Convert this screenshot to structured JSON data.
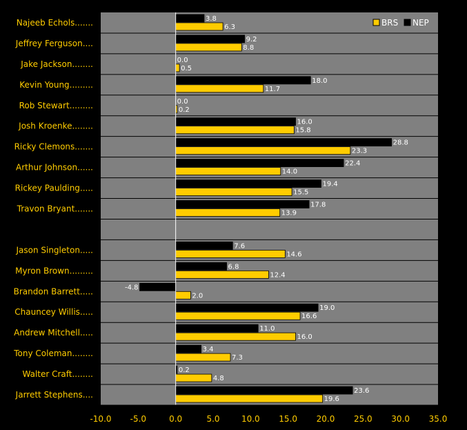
{
  "chart_data": {
    "type": "bar",
    "orientation": "horizontal",
    "categories": [
      "Najeeb Echols.......",
      "Jeffrey Ferguson....",
      "Jake Jackson........",
      "Kevin Young.........",
      "Rob Stewart.........",
      "Josh Kroenke........",
      "Ricky Clemons.......",
      "Arthur Johnson......",
      "Rickey Paulding.....",
      "Travon Bryant.......",
      "",
      "Jason Singleton.....",
      "Myron Brown.........",
      "Brandon Barrett.....",
      "Chauncey Willis.....",
      "Andrew Mitchell.....",
      "Tony Coleman........",
      "Walter Craft........",
      "Jarrett Stephens...."
    ],
    "series": [
      {
        "name": "NEP",
        "color": "#000000",
        "values": [
          3.8,
          9.2,
          0.0,
          18.0,
          0.0,
          16.0,
          28.8,
          22.4,
          19.4,
          17.8,
          null,
          7.6,
          6.8,
          -4.8,
          19.0,
          11.0,
          3.4,
          0.2,
          23.6
        ],
        "labels": [
          "3.8",
          "9.2",
          "0.0",
          "18.0",
          "0.0",
          "16.0",
          "28.8",
          "22.4",
          "19.4",
          "17.8",
          "",
          "7.6",
          "6.8",
          "-4.8",
          "19.0",
          "11.0",
          "3.4",
          "0.2",
          "23.6"
        ]
      },
      {
        "name": "BRS",
        "color": "#ffcc00",
        "values": [
          6.3,
          8.8,
          0.5,
          11.7,
          0.2,
          15.8,
          23.3,
          14.0,
          15.5,
          13.9,
          null,
          14.6,
          12.4,
          2.0,
          16.6,
          16.0,
          7.3,
          4.8,
          19.6
        ],
        "labels": [
          "6.3",
          "8.8",
          "0.5",
          "11.7",
          "0.2",
          "15.8",
          "23.3",
          "14.0",
          "15.5",
          "13.9",
          "",
          "14.6",
          "12.4",
          "2.0",
          "16.6",
          "16.0",
          "7.3",
          "4.8",
          "19.6"
        ]
      }
    ],
    "legend": [
      "BRS",
      "NEP"
    ],
    "legend_position": "top-right",
    "xlim": [
      -10,
      35
    ],
    "xticks": [
      -10,
      -5,
      0,
      5,
      10,
      15,
      20,
      25,
      30,
      35
    ],
    "xtick_labels": [
      "-10.0",
      "-5.0",
      "0.0",
      "5.0",
      "10.0",
      "15.0",
      "20.0",
      "25.0",
      "30.0",
      "35.0"
    ],
    "grid": "horizontal row separators",
    "title": "",
    "xlabel": "",
    "ylabel": "",
    "plot_background": "#808080",
    "page_background": "#000000"
  }
}
